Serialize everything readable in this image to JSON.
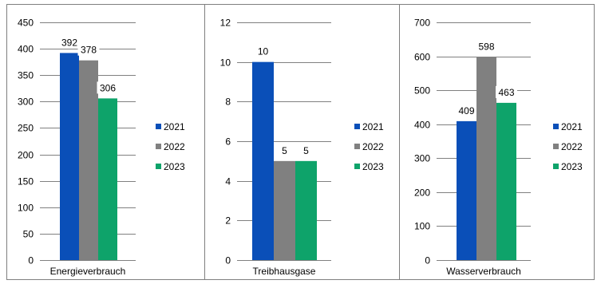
{
  "colors": {
    "c2021": "#0a4fb8",
    "c2022": "#808080",
    "c2023": "#0ea36a",
    "grid": "#808080",
    "border": "#7f7f7f"
  },
  "chart_data": [
    {
      "type": "bar",
      "categories": [
        "Energieverbrauch"
      ],
      "xlabel": "Energieverbrauch",
      "ylim": [
        0,
        450
      ],
      "yticks": [
        0,
        50,
        100,
        150,
        200,
        250,
        300,
        350,
        400,
        450
      ],
      "series": [
        {
          "name": "2021",
          "values": [
            392
          ]
        },
        {
          "name": "2022",
          "values": [
            378
          ]
        },
        {
          "name": "2023",
          "values": [
            306
          ]
        }
      ],
      "legend": "right",
      "grid": true
    },
    {
      "type": "bar",
      "categories": [
        "Treibhausgase"
      ],
      "xlabel": "Treibhausgase",
      "ylim": [
        0,
        12
      ],
      "yticks": [
        0,
        2,
        4,
        6,
        8,
        10,
        12
      ],
      "series": [
        {
          "name": "2021",
          "values": [
            10
          ]
        },
        {
          "name": "2022",
          "values": [
            5
          ]
        },
        {
          "name": "2023",
          "values": [
            5
          ]
        }
      ],
      "legend": "right",
      "grid": true
    },
    {
      "type": "bar",
      "categories": [
        "Wasserverbrauch"
      ],
      "xlabel": "Wasserverbrauch",
      "ylim": [
        0,
        700
      ],
      "yticks": [
        0,
        100,
        200,
        300,
        400,
        500,
        600,
        700
      ],
      "series": [
        {
          "name": "2021",
          "values": [
            409
          ]
        },
        {
          "name": "2022",
          "values": [
            598
          ]
        },
        {
          "name": "2023",
          "values": [
            463
          ]
        }
      ],
      "legend": "right",
      "grid": true
    }
  ]
}
